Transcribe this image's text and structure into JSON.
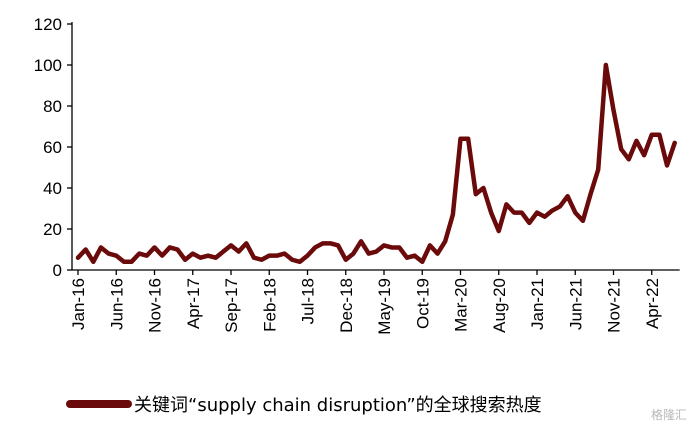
{
  "chart_data": {
    "type": "line",
    "title": "",
    "xlabel": "",
    "ylabel": "",
    "ylim": [
      0,
      120
    ],
    "y_ticks": [
      0,
      20,
      40,
      60,
      80,
      100,
      120
    ],
    "x_tick_labels": [
      "Jan-16",
      "Jun-16",
      "Nov-16",
      "Apr-17",
      "Sep-17",
      "Feb-18",
      "Jul-18",
      "Dec-18",
      "May-19",
      "Oct-19",
      "Mar-20",
      "Aug-20",
      "Jan-21",
      "Jun-21",
      "Nov-21",
      "Apr-22"
    ],
    "x_tick_every": 5,
    "grid": false,
    "legend_position": "bottom",
    "series": [
      {
        "name": "关键词“supply chain disruption”的全球搜索热度",
        "color": "#6b0a0a",
        "values": [
          6,
          10,
          4,
          11,
          8,
          7,
          4,
          4,
          8,
          7,
          11,
          7,
          11,
          10,
          5,
          8,
          6,
          7,
          6,
          9,
          12,
          9,
          13,
          6,
          5,
          7,
          7,
          8,
          5,
          4,
          7,
          11,
          13,
          13,
          12,
          5,
          8,
          14,
          8,
          9,
          12,
          11,
          11,
          6,
          7,
          4,
          12,
          8,
          14,
          27,
          64,
          64,
          37,
          40,
          28,
          19,
          32,
          28,
          28,
          23,
          28,
          26,
          29,
          31,
          36,
          28,
          24,
          37,
          49,
          100,
          78,
          59,
          54,
          63,
          56,
          66,
          66,
          51,
          62
        ]
      }
    ]
  },
  "watermark": "格隆汇"
}
